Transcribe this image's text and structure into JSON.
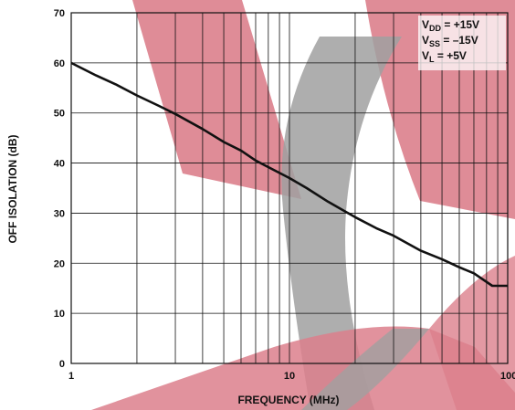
{
  "chart_data": {
    "type": "line",
    "xscale": "log",
    "xlim": [
      1,
      100
    ],
    "ylim": [
      0,
      70
    ],
    "grid": true,
    "xlabel": "FREQUENCY (MHz)",
    "ylabel": "OFF ISOLATION (dB)",
    "x_ticks": [
      "1",
      "10",
      "100"
    ],
    "y_ticks": [
      "0",
      "10",
      "20",
      "30",
      "40",
      "50",
      "60",
      "70"
    ],
    "conditions": [
      {
        "main": "V",
        "sub": "DD",
        "value": " = +15V"
      },
      {
        "main": "V",
        "sub": "SS",
        "value": " = –15V"
      },
      {
        "main": "V",
        "sub": "L",
        "value": " = +5V"
      }
    ],
    "series": [
      {
        "x": [
          1,
          1.3,
          1.6,
          2,
          2.5,
          3,
          4,
          5,
          6,
          7,
          8,
          10,
          12,
          15,
          20,
          25,
          30,
          40,
          50,
          60,
          70,
          85,
          100
        ],
        "y": [
          60,
          57.5,
          55.7,
          53.5,
          51.5,
          49.8,
          46.8,
          44.2,
          42.5,
          40.5,
          39.2,
          37,
          35,
          32.3,
          29.2,
          27,
          25.5,
          22.5,
          20.8,
          19.2,
          18,
          15.5,
          15.5
        ]
      }
    ],
    "colors": {
      "line": "#111111",
      "grid": "#111111",
      "watermark_red": "#dc7f8c",
      "watermark_gray": "#a0a0a0"
    }
  }
}
